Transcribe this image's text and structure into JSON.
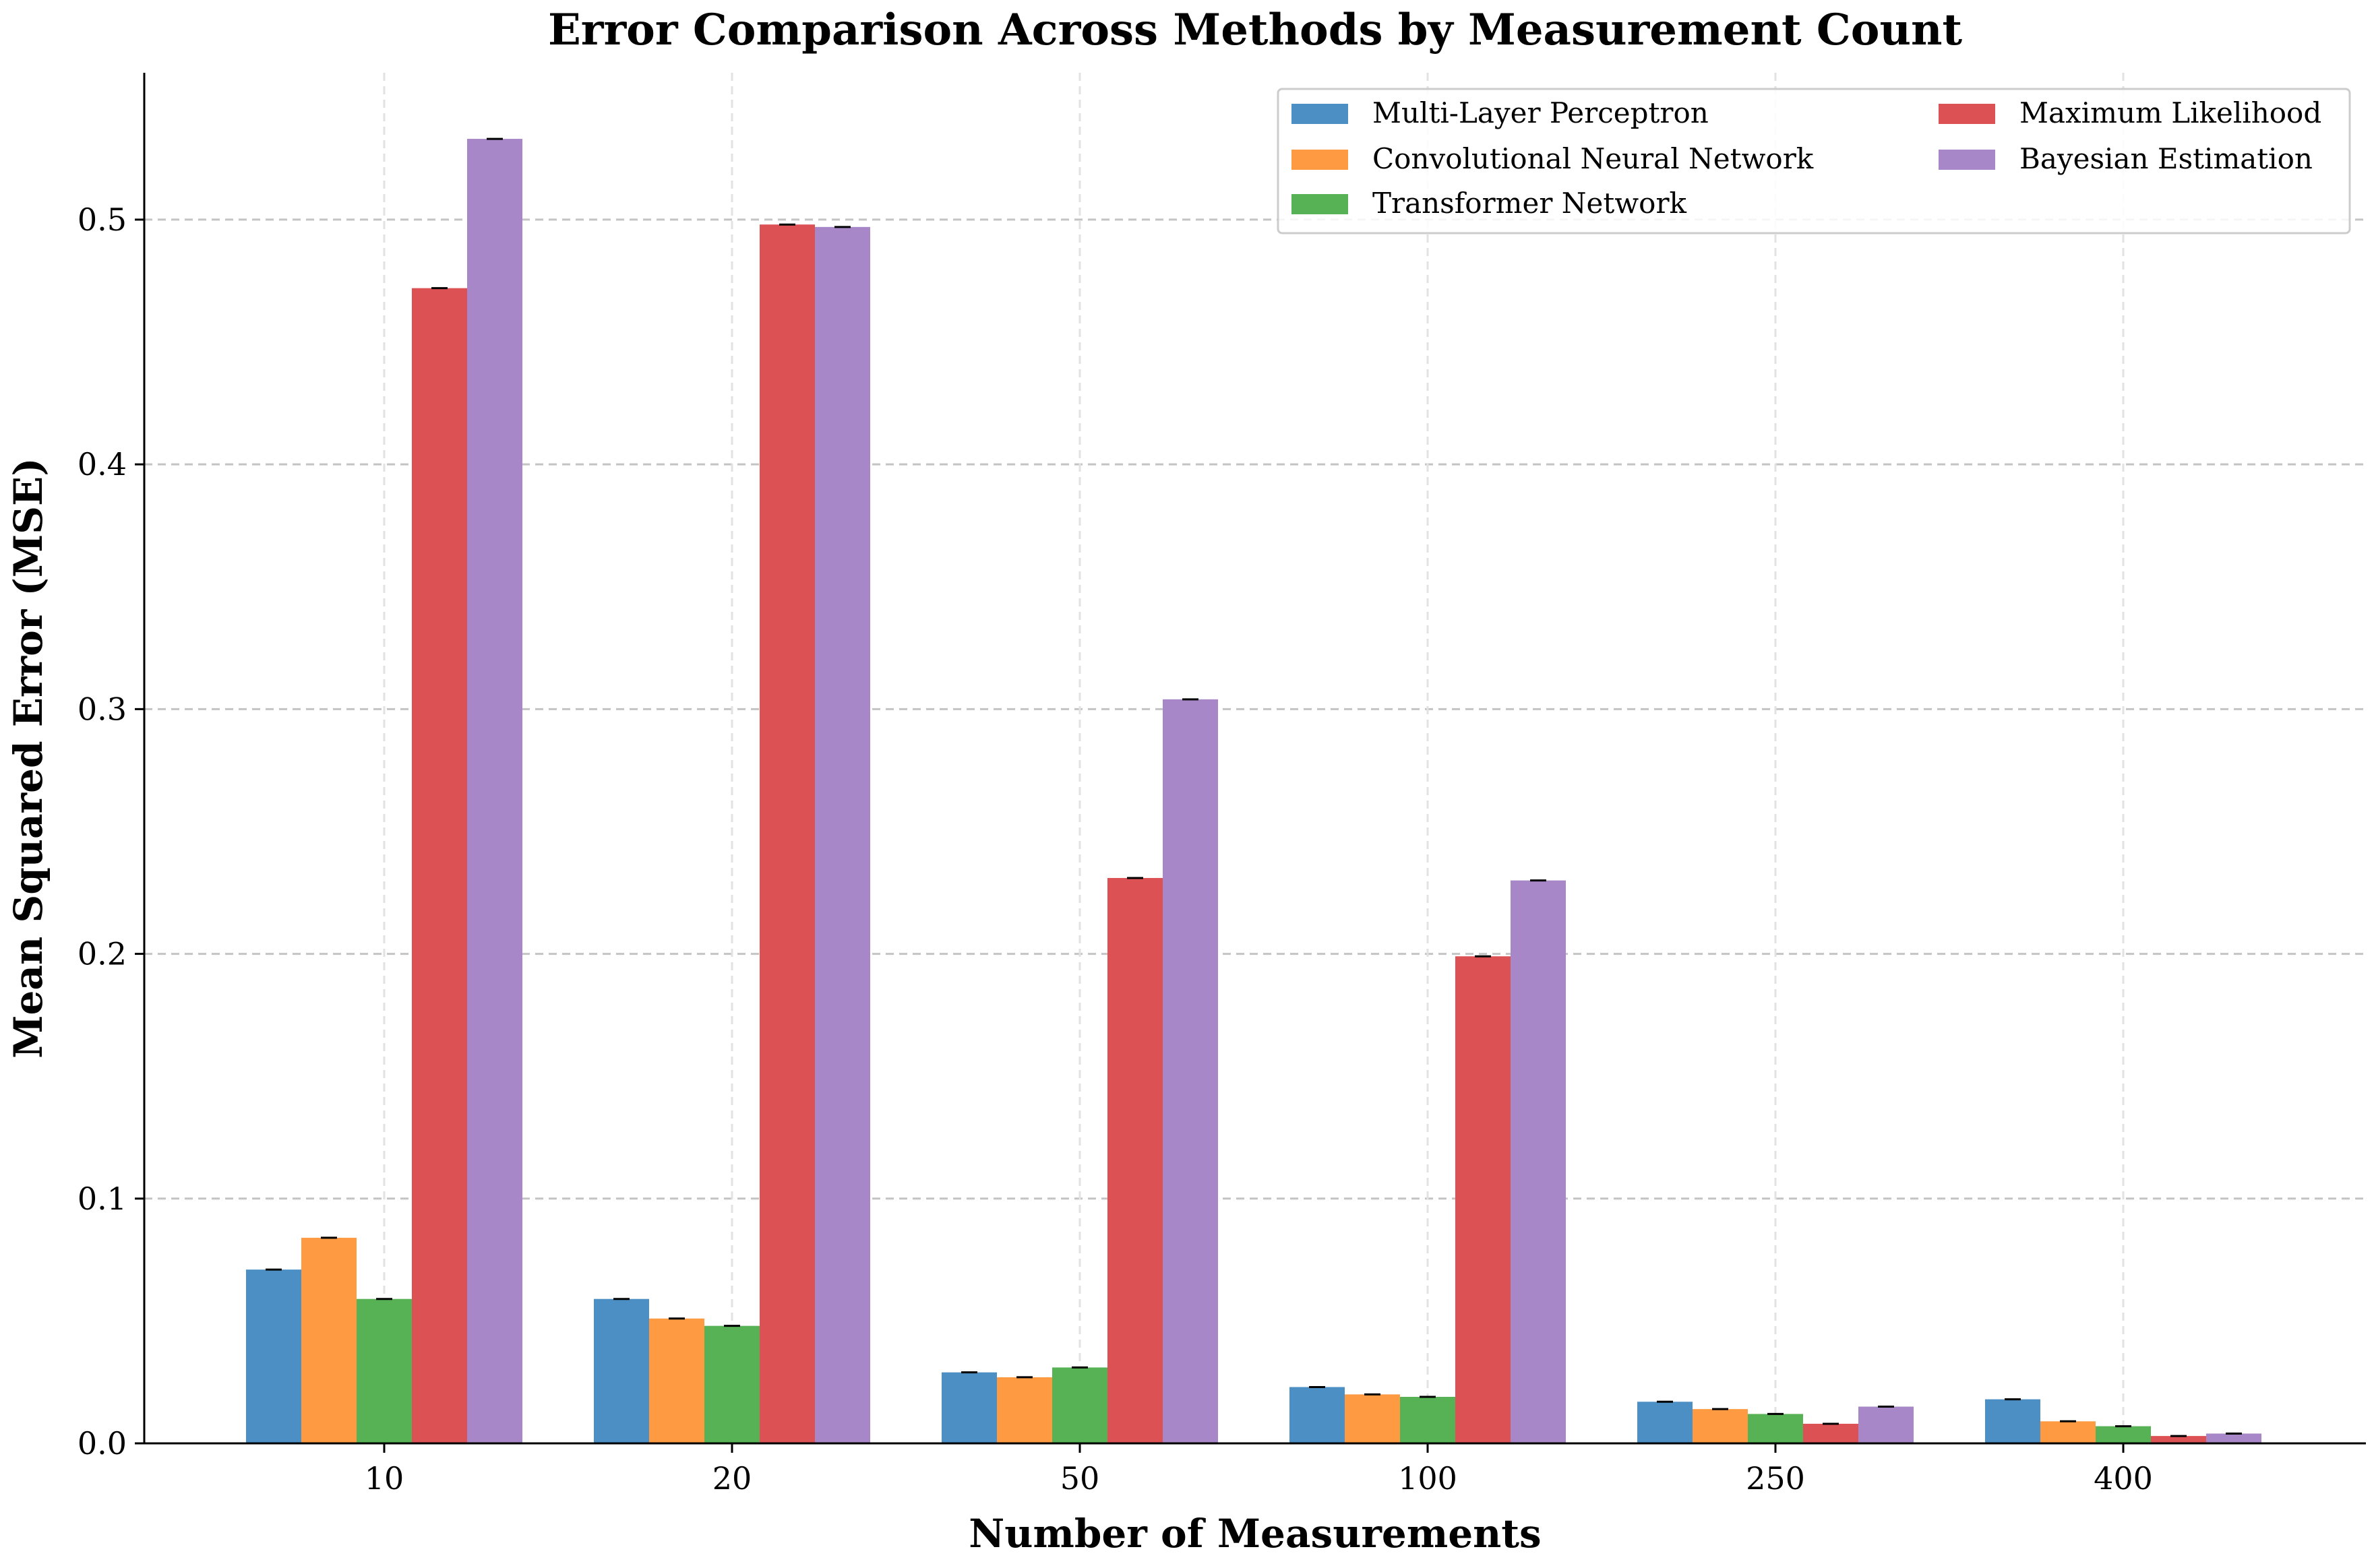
{
  "chart_data": {
    "type": "bar",
    "title": "Error Comparison Across Methods by Measurement Count",
    "xlabel": "Number of Measurements",
    "ylabel": "Mean Squared Error (MSE)",
    "categories": [
      "10",
      "20",
      "50",
      "100",
      "250",
      "400"
    ],
    "ylim": [
      0,
      0.56
    ],
    "yticks": [
      "0.0",
      "0.1",
      "0.2",
      "0.3",
      "0.4",
      "0.5"
    ],
    "grid": true,
    "legend_position": "top-right",
    "series": [
      {
        "name": "Multi-Layer Perceptron",
        "color": "#4c8fc4",
        "values": [
          0.071,
          0.059,
          0.029,
          0.023,
          0.017,
          0.018
        ]
      },
      {
        "name": "Convolutional Neural Network",
        "color": "#fd9a42",
        "values": [
          0.084,
          0.051,
          0.027,
          0.02,
          0.014,
          0.009
        ]
      },
      {
        "name": "Transformer Network",
        "color": "#56b254",
        "values": [
          0.059,
          0.048,
          0.031,
          0.019,
          0.012,
          0.007
        ]
      },
      {
        "name": "Maximum Likelihood",
        "color": "#dc5254",
        "values": [
          0.472,
          0.498,
          0.231,
          0.199,
          0.008,
          0.003
        ]
      },
      {
        "name": "Bayesian Estimation",
        "color": "#a887c9",
        "values": [
          0.533,
          0.497,
          0.304,
          0.23,
          0.015,
          0.004
        ]
      }
    ]
  }
}
